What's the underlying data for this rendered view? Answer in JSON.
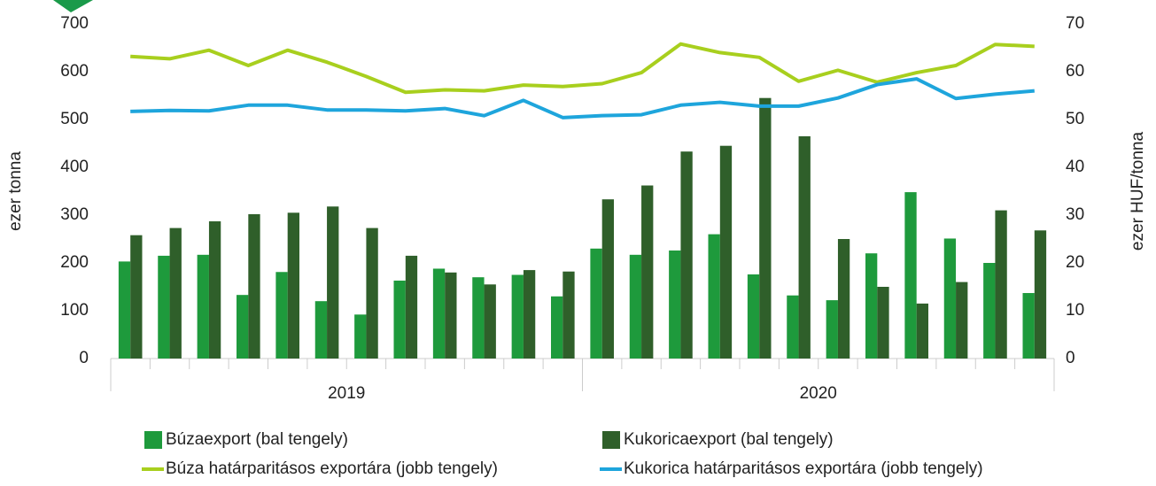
{
  "chart_data": {
    "type": "bar_line",
    "y_label": "ezer tonna",
    "y2_label": "ezer HUF/tonna",
    "categories": [
      null,
      null,
      null,
      null,
      null,
      null,
      null,
      null,
      null,
      null,
      null,
      null,
      null,
      null,
      null,
      null,
      null,
      null,
      null,
      null,
      null,
      null,
      null,
      null
    ],
    "groups": [
      {
        "label": "2019",
        "size": 12
      },
      {
        "label": "2020",
        "size": 12
      }
    ],
    "ylim": [
      0,
      700
    ],
    "yticks": [
      0,
      100,
      200,
      300,
      400,
      500,
      600,
      700
    ],
    "y2lim": [
      0,
      70
    ],
    "y2ticks": [
      0,
      10,
      20,
      30,
      40,
      50,
      60,
      70
    ],
    "series": [
      {
        "name": "Búzaexport (bal tengely)",
        "kind": "bar",
        "color": "#1e9a3c",
        "values": [
          203,
          215,
          217,
          133,
          181,
          120,
          92,
          163,
          188,
          170,
          175,
          130,
          230,
          217,
          226,
          260,
          176,
          132,
          122,
          220,
          348,
          251,
          200,
          137
        ]
      },
      {
        "name": "Kukoricaexport (bal tengely)",
        "kind": "bar",
        "color": "#2f5f2a",
        "values": [
          258,
          273,
          287,
          302,
          305,
          318,
          273,
          215,
          180,
          155,
          185,
          182,
          333,
          362,
          433,
          445,
          545,
          465,
          250,
          150,
          115,
          160,
          310,
          268
        ]
      },
      {
        "name": "Búza határparitásos exportára (jobb tengely)",
        "kind": "line",
        "axis": "y2",
        "color": "#a8cf1e",
        "values": [
          63.2,
          62.7,
          64.5,
          61.3,
          64.5,
          62,
          59,
          55.7,
          56.2,
          56,
          57.2,
          56.9,
          57.5,
          59.8,
          65.8,
          64,
          63,
          58,
          60.3,
          57.8,
          59.8,
          61.3,
          65.7,
          65.3
        ]
      },
      {
        "name": "Kukorica határparitásos exportára (jobb tengely)",
        "kind": "line",
        "axis": "y2",
        "color": "#1ea5dc",
        "values": [
          51.7,
          51.9,
          51.8,
          53,
          53,
          52,
          52,
          51.8,
          52.3,
          50.8,
          54,
          50.4,
          50.8,
          51,
          53,
          53.6,
          52.8,
          52.8,
          54.5,
          57.3,
          58.5,
          54.4,
          55.3,
          56
        ]
      }
    ]
  }
}
